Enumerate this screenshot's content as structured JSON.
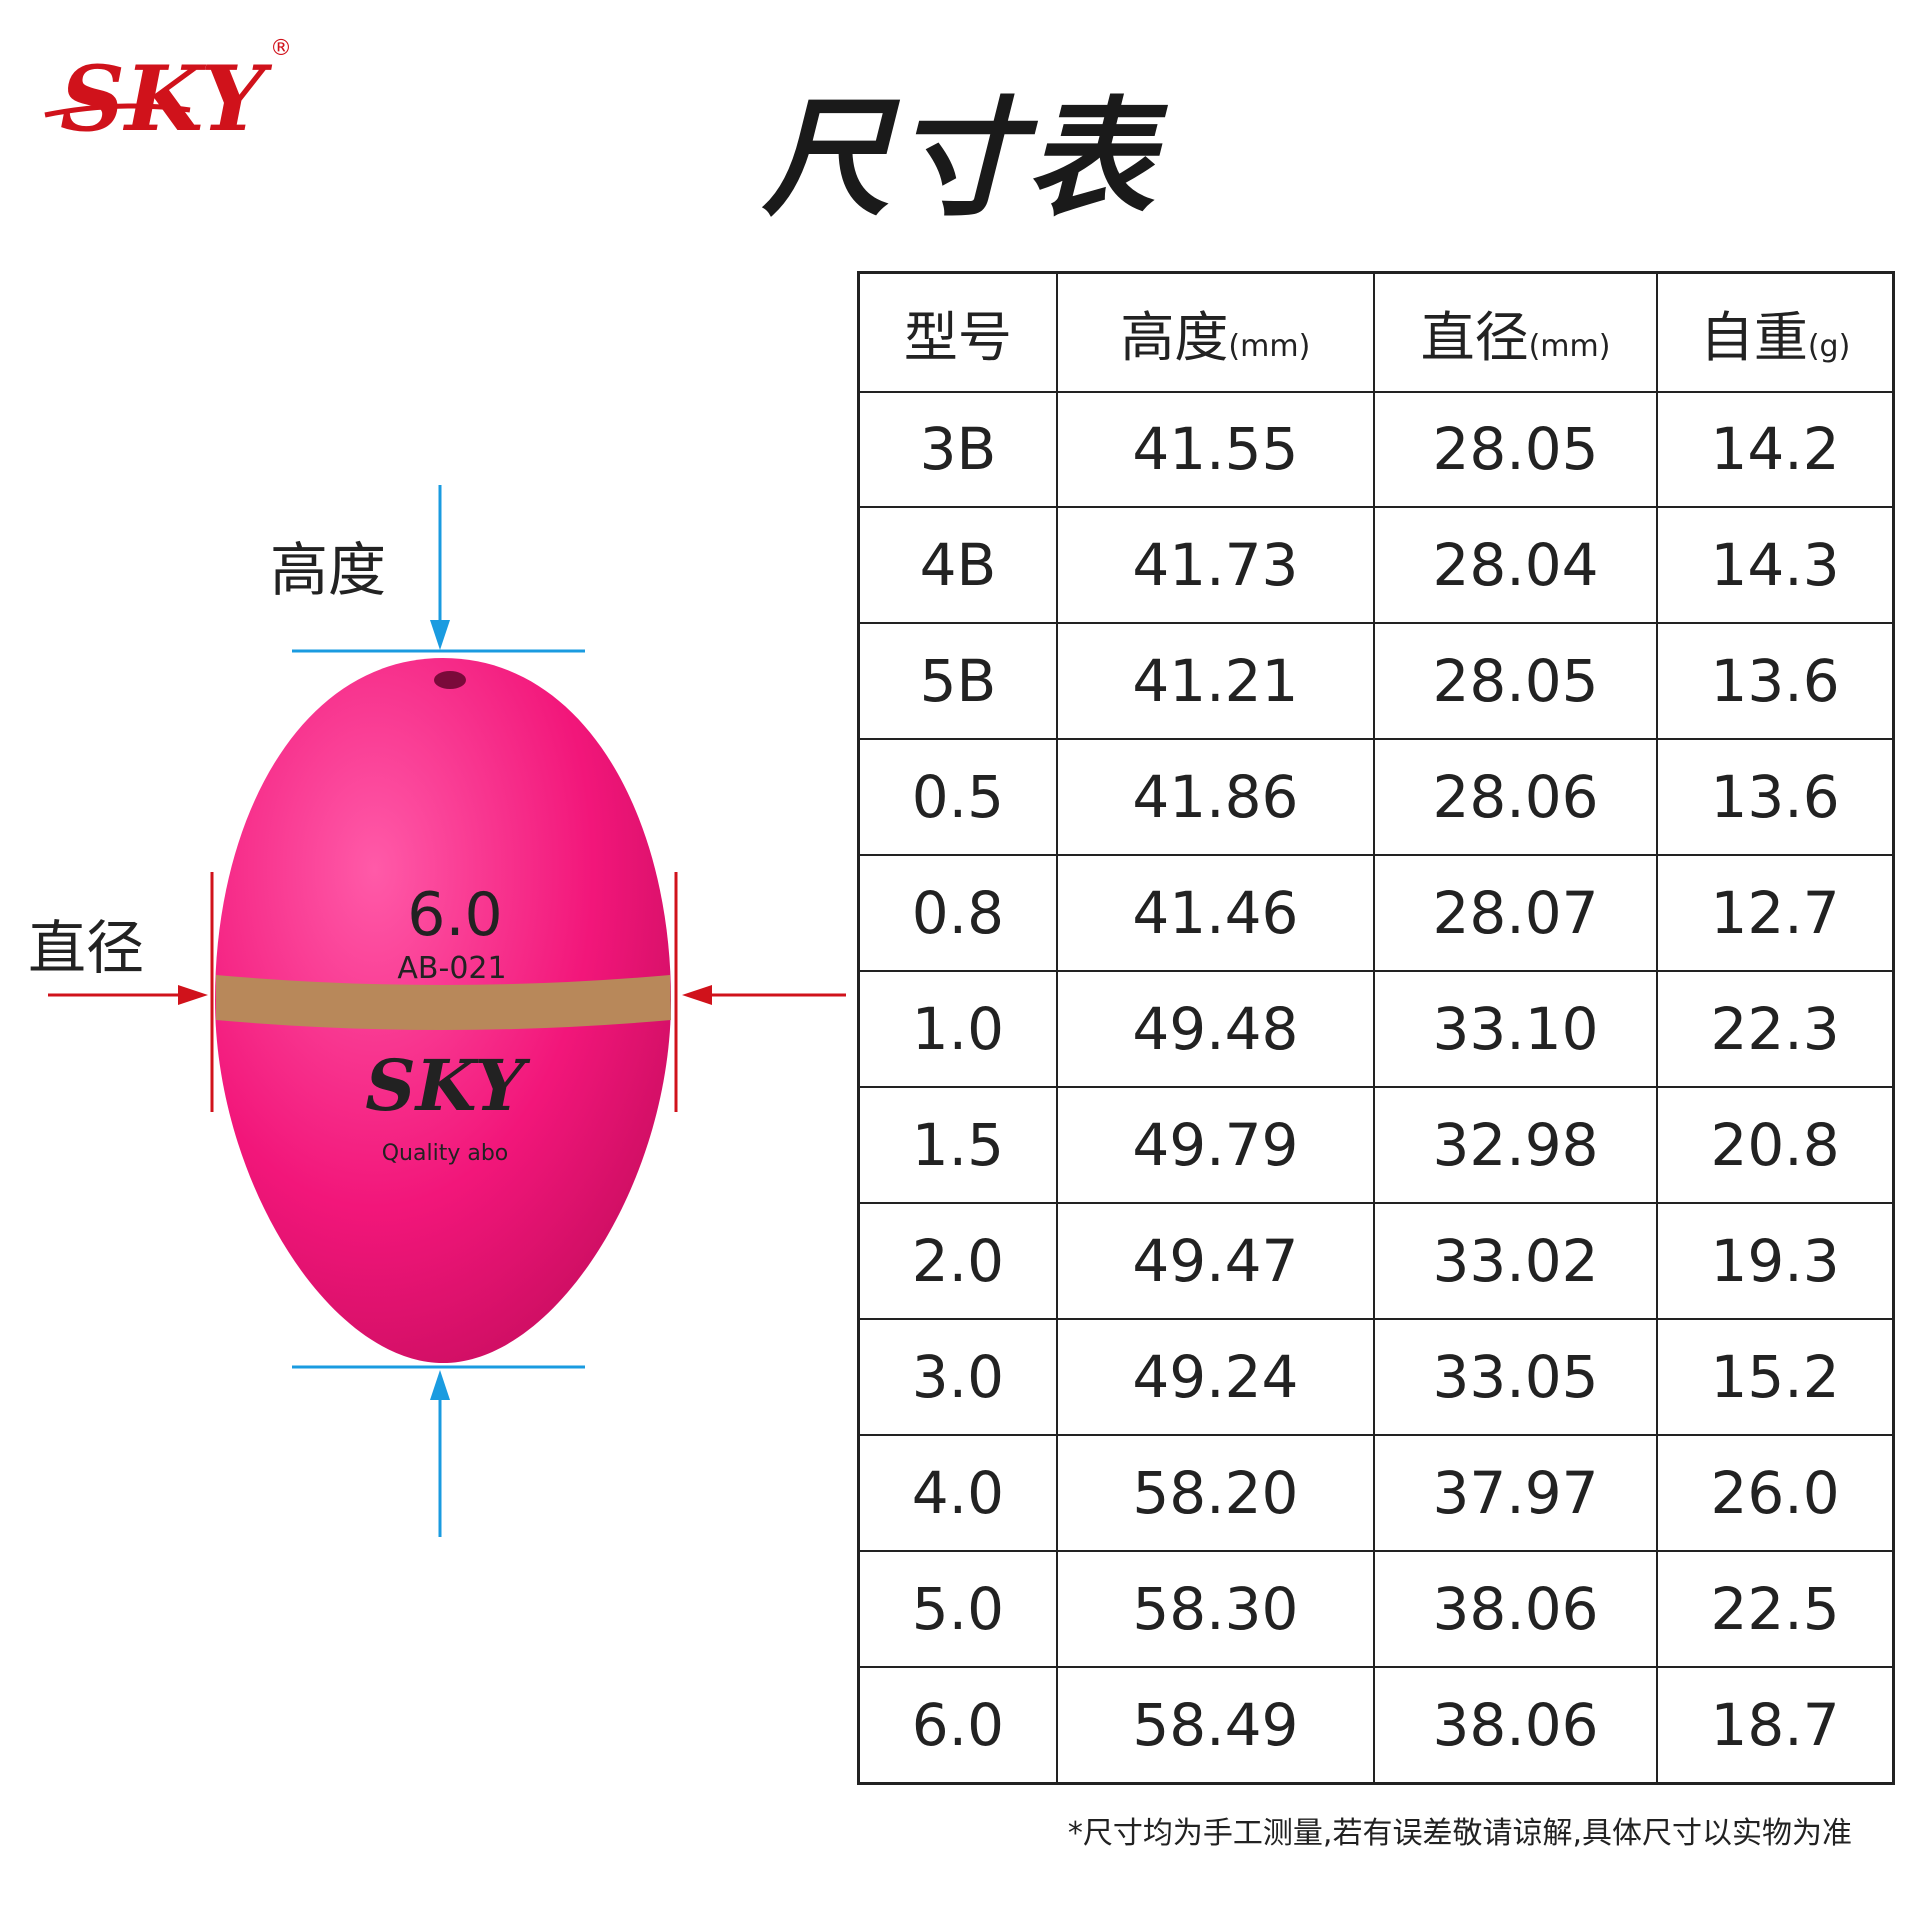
{
  "brand": {
    "logo_text": "SKY",
    "registered": "®",
    "color": "#d0121b"
  },
  "title": "尺寸表",
  "product": {
    "label_height": "高度",
    "label_diameter": "直径",
    "printed_size": "6.0",
    "printed_model": "AB-021",
    "printed_brand": "SKY",
    "printed_slogan": "Quality abo",
    "body_color": "#f2167a",
    "band_color": "#b8885a",
    "height_marker_color": "#1a9be0",
    "diameter_marker_color": "#d0121b"
  },
  "table": {
    "headers": [
      {
        "label": "型号",
        "unit": ""
      },
      {
        "label": "高度",
        "unit": "(mm)"
      },
      {
        "label": "直径",
        "unit": "(mm)"
      },
      {
        "label": "自重",
        "unit": "(g)"
      }
    ],
    "rows": [
      [
        "3B",
        "41.55",
        "28.05",
        "14.2"
      ],
      [
        "4B",
        "41.73",
        "28.04",
        "14.3"
      ],
      [
        "5B",
        "41.21",
        "28.05",
        "13.6"
      ],
      [
        "0.5",
        "41.86",
        "28.06",
        "13.6"
      ],
      [
        "0.8",
        "41.46",
        "28.07",
        "12.7"
      ],
      [
        "1.0",
        "49.48",
        "33.10",
        "22.3"
      ],
      [
        "1.5",
        "49.79",
        "32.98",
        "20.8"
      ],
      [
        "2.0",
        "49.47",
        "33.02",
        "19.3"
      ],
      [
        "3.0",
        "49.24",
        "33.05",
        "15.2"
      ],
      [
        "4.0",
        "58.20",
        "37.97",
        "26.0"
      ],
      [
        "5.0",
        "58.30",
        "38.06",
        "22.5"
      ],
      [
        "6.0",
        "58.49",
        "38.06",
        "18.7"
      ]
    ]
  },
  "footnote": "*尺寸均为手工测量,若有误差敬请谅解,具体尺寸以实物为准"
}
